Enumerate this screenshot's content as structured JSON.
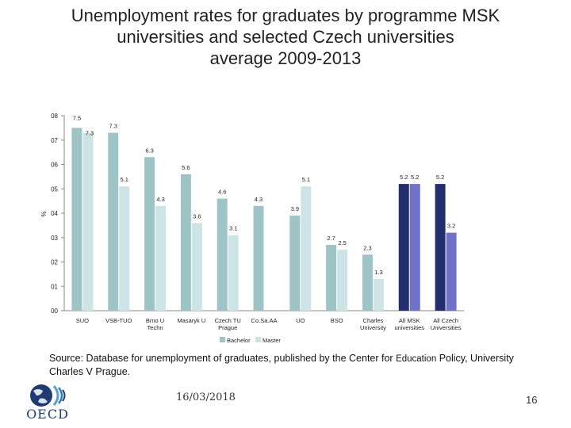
{
  "title": {
    "line1": "Unemployment rates for graduates by programme MSK",
    "line2": "universities and selected Czech universities",
    "line3": "average 2009-2013"
  },
  "source": {
    "part1": "Source: Database for unemployment of graduates, published by the Center for ",
    "part2": "Education",
    "part3": " Policy, University Charles V Prague."
  },
  "footer": {
    "date": "16/03/2018",
    "page": "16"
  },
  "logo": {
    "text": "OECD"
  },
  "chart_data": {
    "type": "bar",
    "ylabel": "%",
    "ylim": [
      0,
      8
    ],
    "yticks": [
      "00",
      "01",
      "02",
      "03",
      "04",
      "05",
      "06",
      "07",
      "08"
    ],
    "grid": false,
    "legend_position": "bottom",
    "categories": [
      [
        "SUO"
      ],
      [
        "VSB-TUO"
      ],
      [
        "Brno U",
        "Techn"
      ],
      [
        "Masaryk U"
      ],
      [
        "Czech TU",
        "Prague"
      ],
      [
        "Co.Sa.AA"
      ],
      [
        "UO"
      ],
      [
        "BSO"
      ],
      [
        "Charles",
        "University"
      ],
      [
        "All MSK",
        "universities"
      ],
      [
        "All Czech",
        "Universities"
      ]
    ],
    "series": [
      {
        "name": "Bachelor",
        "values": [
          7.5,
          7.3,
          6.3,
          5.6,
          4.6,
          4.3,
          3.9,
          2.7,
          2.3,
          5.2,
          5.2
        ]
      },
      {
        "name": "Master",
        "values": [
          7.3,
          5.1,
          4.3,
          3.6,
          3.1,
          null,
          5.1,
          2.5,
          1.3,
          5.2,
          3.2
        ]
      }
    ],
    "data_labels": {
      "Bachelor": [
        "7.5",
        "7.3",
        "6.3",
        "5.6",
        "4.6",
        "4.3",
        "3.9",
        "2.7",
        "2.3",
        "5.2",
        "5.2"
      ],
      "Master": [
        "7.3",
        "5.1",
        "4.3",
        "3.6",
        "3.1",
        "",
        "5.1",
        "2.5",
        "1.3",
        "5.2",
        "3.2"
      ]
    },
    "colors": {
      "bachelor": "#9ec4c6",
      "master": "#cde4e6",
      "highlight_bachelor": "#232e6e",
      "highlight_master": "#7072c8",
      "axis": "#8a8a8a",
      "text": "#222222"
    },
    "highlighted_categories": [
      9,
      10
    ]
  }
}
